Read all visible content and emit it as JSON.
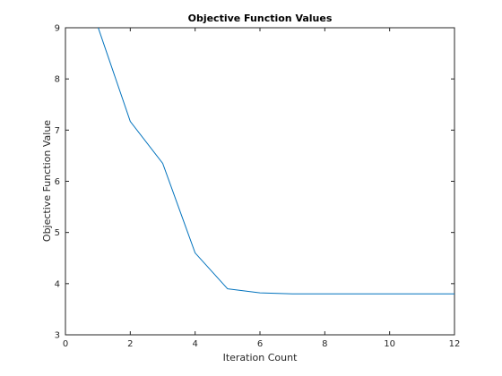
{
  "chart_data": {
    "type": "line",
    "title": "Objective Function Values",
    "xlabel": "Iteration Count",
    "ylabel": "Objective Function Value",
    "xlim": [
      0,
      12
    ],
    "ylim": [
      3,
      9
    ],
    "xticks": [
      "0",
      "2",
      "4",
      "6",
      "8",
      "10",
      "12"
    ],
    "yticks": [
      "3",
      "4",
      "5",
      "6",
      "7",
      "8",
      "9"
    ],
    "grid": false,
    "series": [
      {
        "color": "#0072BD",
        "x": [
          1,
          2,
          3,
          4,
          5,
          6,
          7,
          8,
          9,
          10,
          11,
          12
        ],
        "y": [
          9.02,
          7.17,
          6.35,
          4.6,
          3.9,
          3.82,
          3.8,
          3.8,
          3.8,
          3.8,
          3.8,
          3.8
        ]
      }
    ]
  }
}
